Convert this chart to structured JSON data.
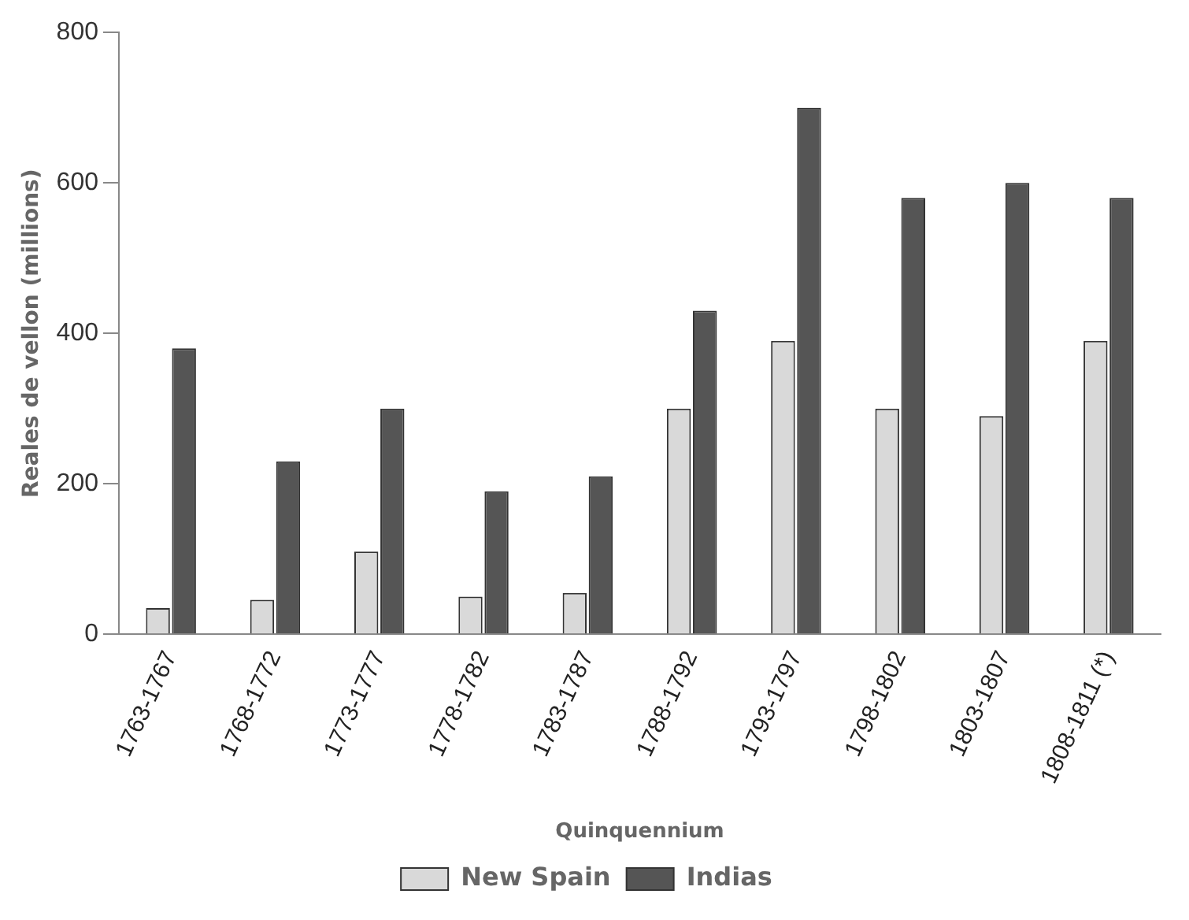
{
  "chart_data": {
    "type": "bar",
    "xlabel": "Quinquennium",
    "ylabel": "Reales de vellon (millions)",
    "categories": [
      "1763-1767",
      "1768-1772",
      "1773-1777",
      "1778-1782",
      "1783-1787",
      "1788-1792",
      "1793-1797",
      "1798-1802",
      "1803-1807",
      "1808-1811 (*)"
    ],
    "series": [
      {
        "name": "New Spain",
        "color": "#d9d9d9",
        "values": [
          35,
          46,
          110,
          50,
          55,
          300,
          390,
          300,
          290,
          390
        ]
      },
      {
        "name": "Indias",
        "color": "#555555",
        "values": [
          380,
          230,
          300,
          190,
          210,
          430,
          700,
          580,
          600,
          580
        ]
      }
    ],
    "ylim": [
      0,
      800
    ],
    "yticks": [
      0,
      200,
      400,
      600,
      800
    ],
    "grid": false,
    "legend": "bottom"
  }
}
